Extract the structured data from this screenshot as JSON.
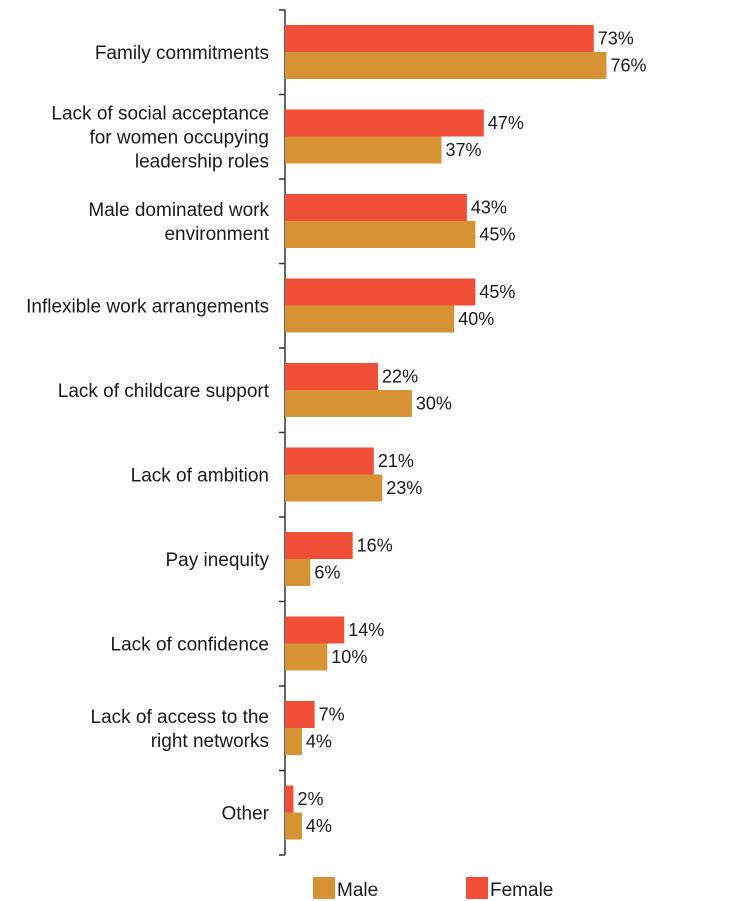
{
  "chart_data": {
    "type": "bar",
    "orientation": "horizontal",
    "categories": [
      [
        "Family commitments"
      ],
      [
        "Lack of social acceptance",
        "for women occupying",
        "leadership roles"
      ],
      [
        "Male dominated work",
        "environment"
      ],
      [
        "Inflexible work arrangements"
      ],
      [
        "Lack of childcare support"
      ],
      [
        "Lack of ambition"
      ],
      [
        "Pay inequity"
      ],
      [
        "Lack of confidence"
      ],
      [
        "Lack of access to the",
        "right networks"
      ],
      [
        "Other"
      ]
    ],
    "series": [
      {
        "name": "Female",
        "color": "#f04e37",
        "values": [
          73,
          47,
          43,
          45,
          22,
          21,
          16,
          14,
          7,
          2
        ],
        "labels": [
          "73%",
          "47%",
          "43%",
          "45%",
          "22%",
          "21%",
          "16%",
          "14%",
          "7%",
          "2%"
        ]
      },
      {
        "name": "Male",
        "color": "#d69233",
        "values": [
          76,
          37,
          45,
          40,
          30,
          23,
          6,
          10,
          4,
          4
        ],
        "labels": [
          "76%",
          "37%",
          "45%",
          "40%",
          "30%",
          "23%",
          "6%",
          "10%",
          "4%",
          "4%"
        ]
      }
    ],
    "legend": {
      "position": "bottom",
      "items": [
        {
          "name": "Male",
          "color": "#d69233"
        },
        {
          "name": "Female",
          "color": "#f04e37"
        }
      ]
    },
    "xlim": [
      0,
      100
    ],
    "grid": false,
    "title": "",
    "xlabel": "",
    "ylabel": ""
  }
}
